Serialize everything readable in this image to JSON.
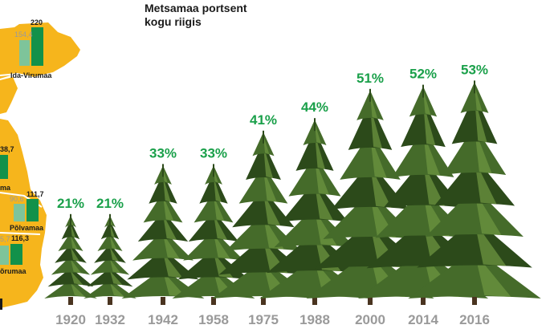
{
  "title_lines": [
    "Metsamaa portsent",
    "kogu riigis"
  ],
  "colors": {
    "percent_label": "#1aa04a",
    "year_label": "#9a9a9a",
    "tree_dark": "#2c4a1a",
    "tree_mid": "#456b2a",
    "tree_light": "#6c9440",
    "map_fill": "#f6b51c",
    "map_border": "#ffffff",
    "bar_light": "#7ec49a",
    "bar_dark": "#12914a"
  },
  "chart_data": {
    "type": "bar",
    "title": "Metsamaa portsent kogu riigis",
    "categories": [
      "1920",
      "1932",
      "1942",
      "1958",
      "1975",
      "1988",
      "2000",
      "2014",
      "2016"
    ],
    "values": [
      21,
      21,
      33,
      33,
      41,
      44,
      51,
      52,
      53
    ],
    "value_labels": [
      "21%",
      "21%",
      "33%",
      "33%",
      "41%",
      "44%",
      "51%",
      "52%",
      "53%"
    ],
    "mark": "tree"
  },
  "county_panel": {
    "counties": [
      {
        "name": "Ida-Virumaa",
        "values": [
          "154,4",
          "220"
        ]
      },
      {
        "name": "",
        "values": [
          "",
          "38,7"
        ]
      },
      {
        "name": "...ma",
        "values": [],
        "name_text": "ma"
      },
      {
        "name": "Põlvamaa",
        "values": [
          "90,6",
          "111,7"
        ]
      },
      {
        "name": "...õrumaa",
        "values": [
          "5,7",
          "116,3"
        ],
        "name_text": "õrumaa"
      }
    ]
  }
}
